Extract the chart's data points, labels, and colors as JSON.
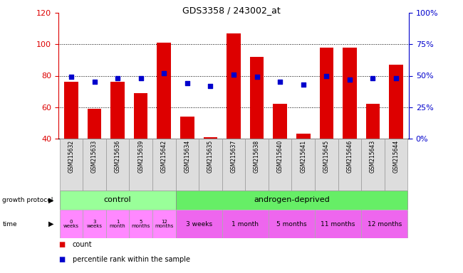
{
  "title": "GDS3358 / 243002_at",
  "samples": [
    "GSM215632",
    "GSM215633",
    "GSM215636",
    "GSM215639",
    "GSM215642",
    "GSM215634",
    "GSM215635",
    "GSM215637",
    "GSM215638",
    "GSM215640",
    "GSM215641",
    "GSM215645",
    "GSM215646",
    "GSM215643",
    "GSM215644"
  ],
  "counts": [
    76,
    59,
    76,
    69,
    101,
    54,
    41,
    107,
    92,
    62,
    43,
    98,
    98,
    62,
    87
  ],
  "percentile_pct": [
    49,
    45,
    48,
    48,
    52,
    44,
    42,
    51,
    49,
    45,
    43,
    50,
    47,
    48,
    48
  ],
  "count_color": "#dd0000",
  "percentile_color": "#0000cc",
  "ylim_left": [
    40,
    120
  ],
  "ylim_right": [
    0,
    100
  ],
  "yticks_left": [
    40,
    60,
    80,
    100,
    120
  ],
  "yticks_right": [
    0,
    25,
    50,
    75,
    100
  ],
  "ytick_labels_right": [
    "0%",
    "25%",
    "50%",
    "75%",
    "100%"
  ],
  "dotted_lines": [
    60,
    80,
    100
  ],
  "bar_width": 0.6,
  "control_color": "#99ff99",
  "androgen_color": "#66ee66",
  "time_color_control": "#ff88ff",
  "time_color_androgen": "#ee66ee",
  "control_label": "control",
  "androgen_label": "androgen-deprived",
  "time_labels_control": [
    "0\nweeks",
    "3\nweeks",
    "1\nmonth",
    "5\nmonths",
    "12\nmonths"
  ],
  "time_labels_androgen": [
    "3 weeks",
    "1 month",
    "5 months",
    "11 months",
    "12 months"
  ],
  "legend_count": "count",
  "legend_percentile": "percentile rank within the sample",
  "growth_protocol_label": "growth protocol",
  "time_label": "time",
  "bg_plot": "#ffffff",
  "bg_figure": "#ffffff",
  "axis_left_color": "#dd0000",
  "axis_right_color": "#0000cc",
  "sample_bg": "#dddddd",
  "n_control": 5,
  "n_androgen": 10
}
